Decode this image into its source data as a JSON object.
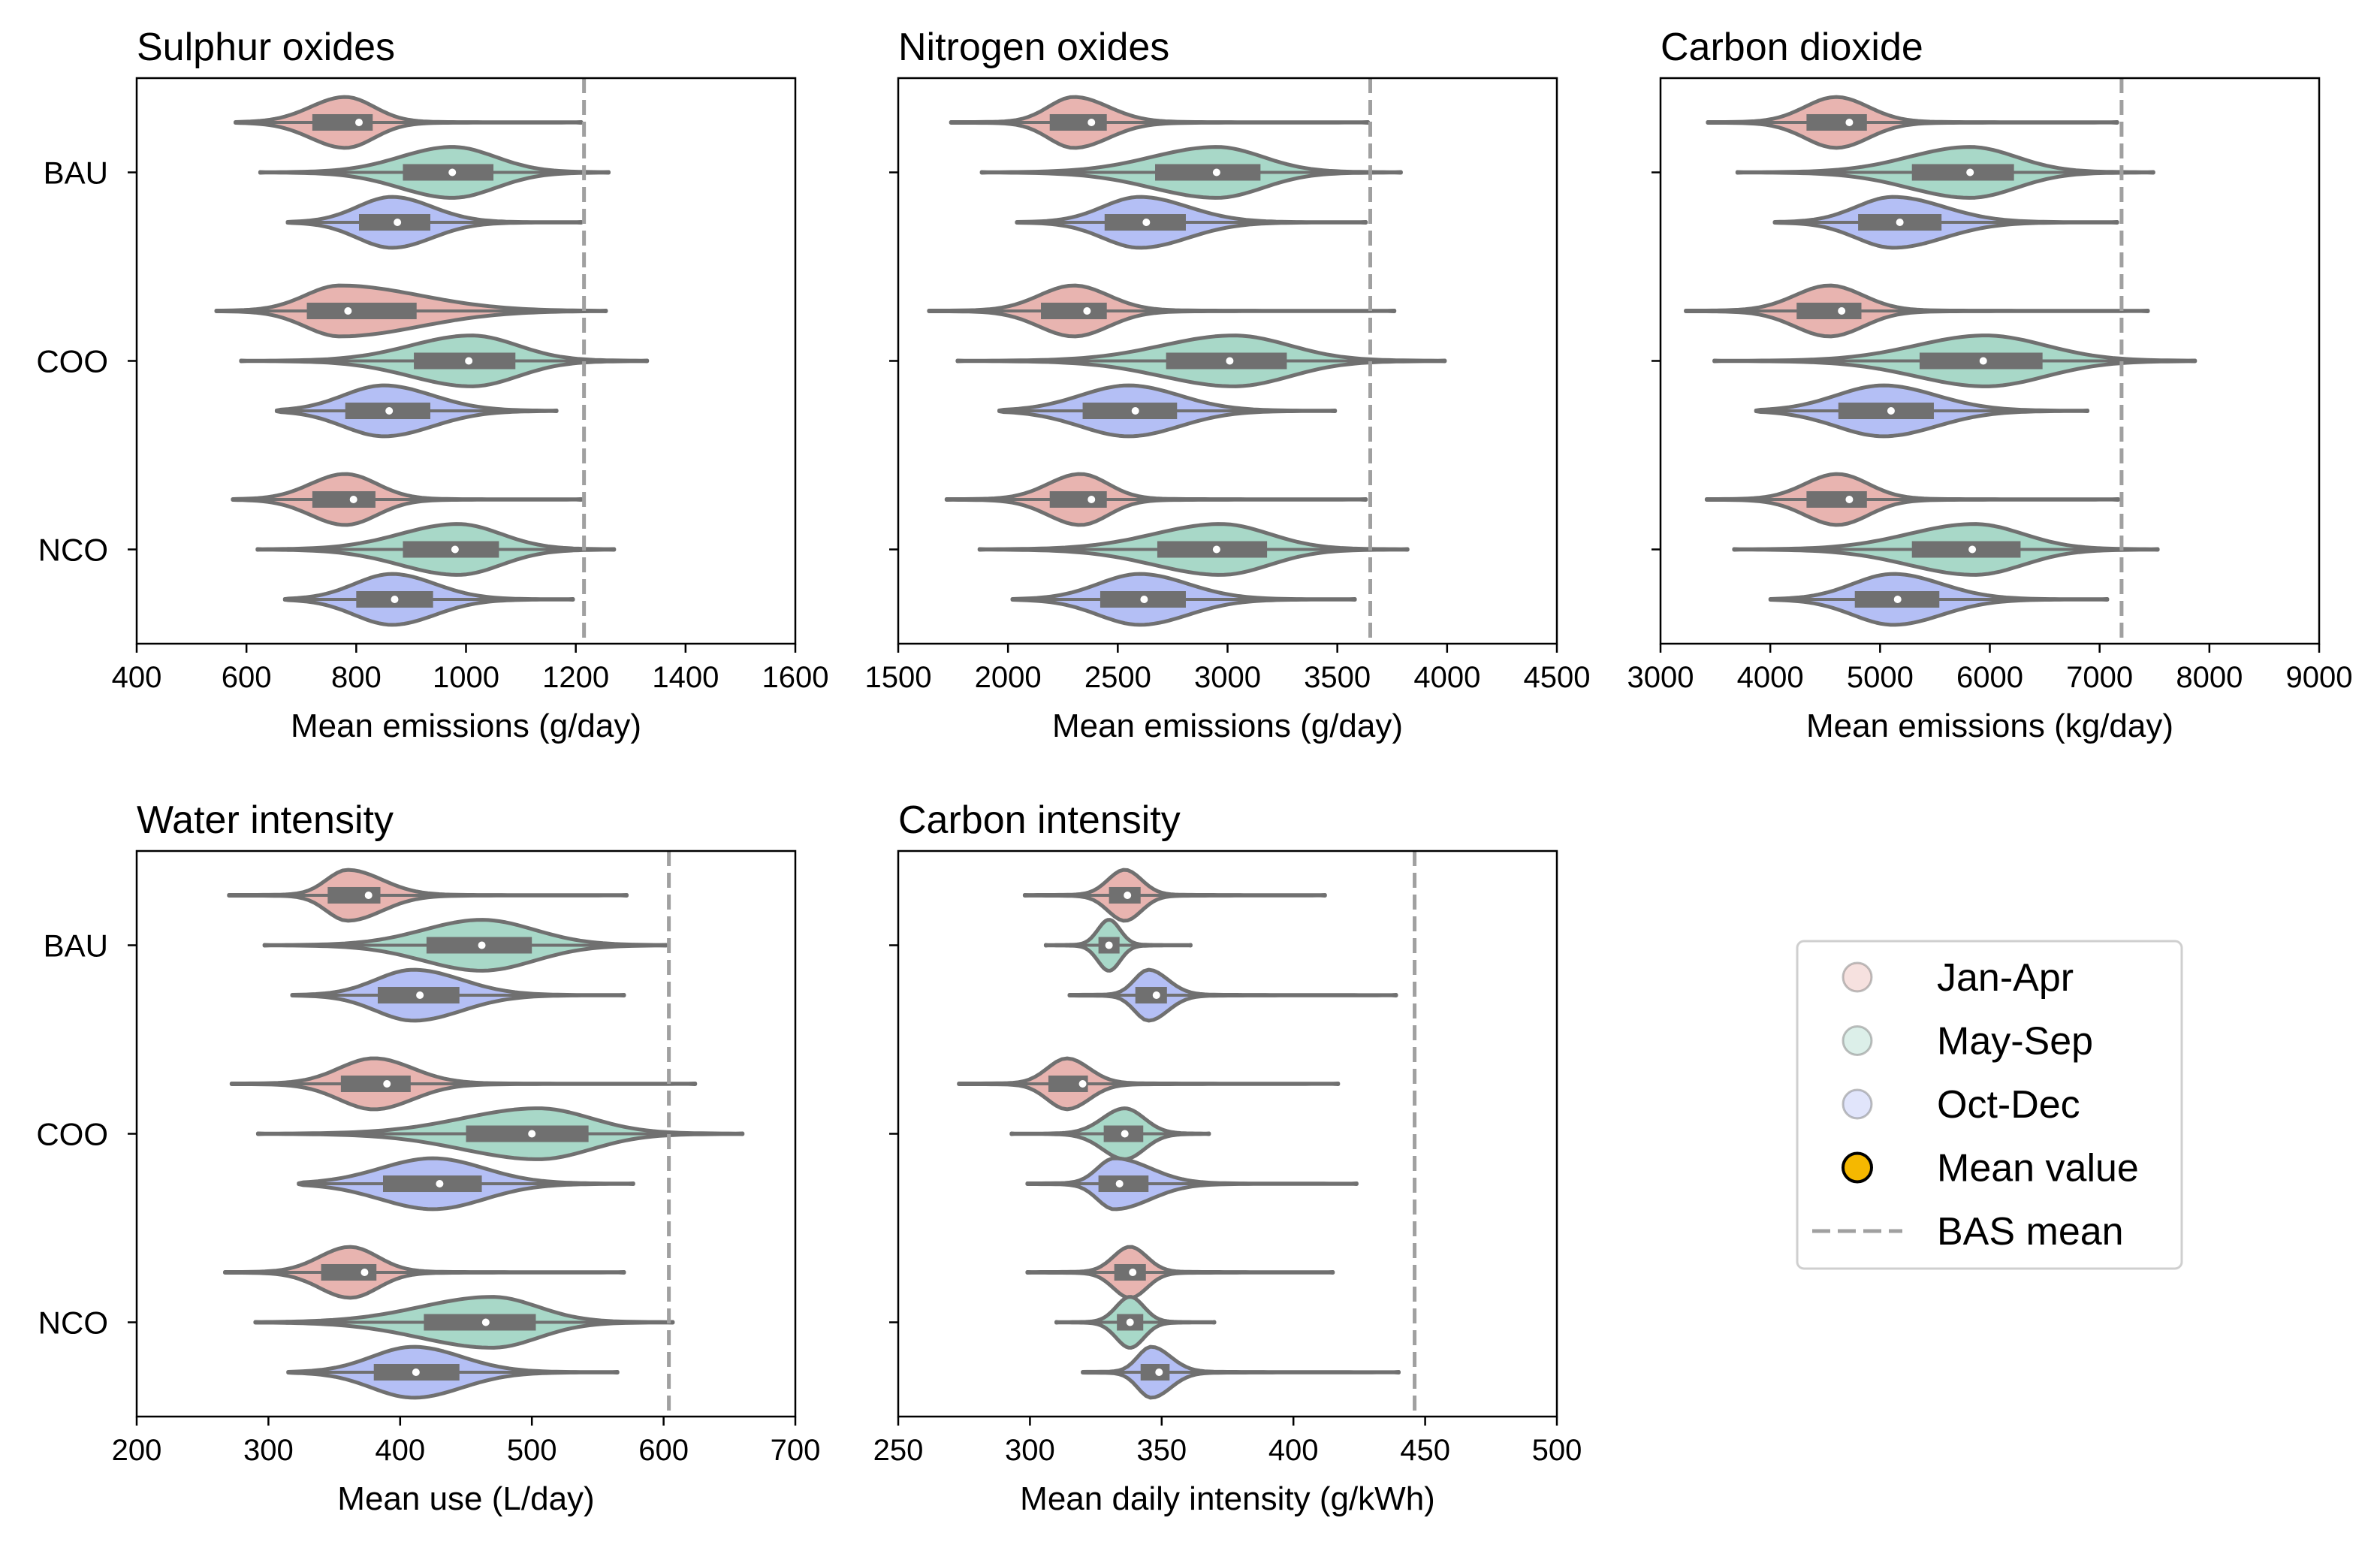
{
  "colors": {
    "Jan-Apr": "#e8b4b0",
    "May-Sep": "#a8d8c8",
    "Oct-Dec": "#b4bff5",
    "violin_edge": "#707070",
    "box": "#707070",
    "mean_marker": "#ffffff",
    "legend_mean_marker": "#f5b800",
    "bas_line": "#a0a0a0"
  },
  "legend": {
    "entries": [
      "Jan-Apr",
      "May-Sep",
      "Oct-Dec",
      "Mean value",
      "BAS mean"
    ],
    "placement": "lower-right (empty sixth panel)"
  },
  "chart_data": [
    {
      "type": "violin",
      "title": "Sulphur oxides",
      "xlabel": "Mean emissions (g/day)",
      "xlim": [
        400,
        1600
      ],
      "xticks": [
        400,
        600,
        800,
        1000,
        1200,
        1400,
        1600
      ],
      "categories": [
        "BAU",
        "COO",
        "NCO"
      ],
      "show_yticklabels": true,
      "bas_mean": 1215,
      "groups": [
        {
          "category": "BAU",
          "series": "Jan-Apr",
          "min": 580,
          "q1": 720,
          "median": 780,
          "q3": 830,
          "max": 1210,
          "mean": 805,
          "mode": 780
        },
        {
          "category": "BAU",
          "series": "May-Sep",
          "min": 625,
          "q1": 885,
          "median": 960,
          "q3": 1050,
          "max": 1260,
          "mean": 975,
          "mode": 975
        },
        {
          "category": "BAU",
          "series": "Oct-Dec",
          "min": 675,
          "q1": 805,
          "median": 860,
          "q3": 935,
          "max": 1210,
          "mean": 875,
          "mode": 865
        },
        {
          "category": "COO",
          "series": "Jan-Apr",
          "min": 545,
          "q1": 710,
          "median": 770,
          "q3": 910,
          "max": 1255,
          "mean": 785,
          "mode": 770
        },
        {
          "category": "COO",
          "series": "May-Sep",
          "min": 590,
          "q1": 905,
          "median": 1000,
          "q3": 1090,
          "max": 1330,
          "mean": 1005,
          "mode": 1010
        },
        {
          "category": "COO",
          "series": "Oct-Dec",
          "min": 655,
          "q1": 780,
          "median": 845,
          "q3": 935,
          "max": 1165,
          "mean": 860,
          "mode": 850
        },
        {
          "category": "NCO",
          "series": "Jan-Apr",
          "min": 575,
          "q1": 720,
          "median": 780,
          "q3": 835,
          "max": 1210,
          "mean": 795,
          "mode": 780
        },
        {
          "category": "NCO",
          "series": "May-Sep",
          "min": 620,
          "q1": 885,
          "median": 970,
          "q3": 1060,
          "max": 1270,
          "mean": 980,
          "mode": 985
        },
        {
          "category": "NCO",
          "series": "Oct-Dec",
          "min": 670,
          "q1": 800,
          "median": 855,
          "q3": 940,
          "max": 1195,
          "mean": 870,
          "mode": 865
        }
      ]
    },
    {
      "type": "violin",
      "title": "Nitrogen oxides",
      "xlabel": "Mean emissions (g/day)",
      "xlim": [
        1500,
        4500
      ],
      "xticks": [
        1500,
        2000,
        2500,
        3000,
        3500,
        4000,
        4500
      ],
      "categories": [
        "BAU",
        "COO",
        "NCO"
      ],
      "show_yticklabels": false,
      "bas_mean": 3650,
      "groups": [
        {
          "category": "BAU",
          "series": "Jan-Apr",
          "min": 1740,
          "q1": 2190,
          "median": 2300,
          "q3": 2450,
          "max": 3640,
          "mean": 2380,
          "mode": 2300
        },
        {
          "category": "BAU",
          "series": "May-Sep",
          "min": 1880,
          "q1": 2670,
          "median": 2900,
          "q3": 3150,
          "max": 3790,
          "mean": 2950,
          "mode": 2950
        },
        {
          "category": "BAU",
          "series": "Oct-Dec",
          "min": 2040,
          "q1": 2440,
          "median": 2580,
          "q3": 2810,
          "max": 3630,
          "mean": 2630,
          "mode": 2600
        },
        {
          "category": "COO",
          "series": "Jan-Apr",
          "min": 1640,
          "q1": 2150,
          "median": 2300,
          "q3": 2450,
          "max": 3760,
          "mean": 2360,
          "mode": 2300
        },
        {
          "category": "COO",
          "series": "May-Sep",
          "min": 1770,
          "q1": 2720,
          "median": 3000,
          "q3": 3270,
          "max": 3990,
          "mean": 3010,
          "mode": 3030
        },
        {
          "category": "COO",
          "series": "Oct-Dec",
          "min": 1960,
          "q1": 2340,
          "median": 2530,
          "q3": 2770,
          "max": 3490,
          "mean": 2580,
          "mode": 2550
        },
        {
          "category": "NCO",
          "series": "Jan-Apr",
          "min": 1720,
          "q1": 2190,
          "median": 2330,
          "q3": 2450,
          "max": 3630,
          "mean": 2380,
          "mode": 2330
        },
        {
          "category": "NCO",
          "series": "May-Sep",
          "min": 1870,
          "q1": 2680,
          "median": 2940,
          "q3": 3180,
          "max": 3820,
          "mean": 2950,
          "mode": 2970
        },
        {
          "category": "NCO",
          "series": "Oct-Dec",
          "min": 2020,
          "q1": 2420,
          "median": 2580,
          "q3": 2810,
          "max": 3580,
          "mean": 2620,
          "mode": 2600
        }
      ]
    },
    {
      "type": "violin",
      "title": "Carbon dioxide",
      "xlabel": "Mean emissions (kg/day)",
      "xlim": [
        3000,
        9000
      ],
      "xticks": [
        3000,
        4000,
        5000,
        6000,
        7000,
        8000,
        9000
      ],
      "categories": [
        "BAU",
        "COO",
        "NCO"
      ],
      "show_yticklabels": false,
      "bas_mean": 7200,
      "groups": [
        {
          "category": "BAU",
          "series": "Jan-Apr",
          "min": 3430,
          "q1": 4330,
          "median": 4600,
          "q3": 4880,
          "max": 7160,
          "mean": 4720,
          "mode": 4600
        },
        {
          "category": "BAU",
          "series": "May-Sep",
          "min": 3700,
          "q1": 5290,
          "median": 5750,
          "q3": 6220,
          "max": 7490,
          "mean": 5820,
          "mode": 5820
        },
        {
          "category": "BAU",
          "series": "Oct-Dec",
          "min": 4040,
          "q1": 4800,
          "median": 5090,
          "q3": 5560,
          "max": 7160,
          "mean": 5180,
          "mode": 5120
        },
        {
          "category": "COO",
          "series": "Jan-Apr",
          "min": 3230,
          "q1": 4240,
          "median": 4540,
          "q3": 4830,
          "max": 7440,
          "mean": 4650,
          "mode": 4540
        },
        {
          "category": "COO",
          "series": "May-Sep",
          "min": 3490,
          "q1": 5360,
          "median": 5910,
          "q3": 6480,
          "max": 7870,
          "mean": 5940,
          "mode": 5960
        },
        {
          "category": "COO",
          "series": "Oct-Dec",
          "min": 3870,
          "q1": 4620,
          "median": 4990,
          "q3": 5490,
          "max": 6890,
          "mean": 5100,
          "mode": 5030
        },
        {
          "category": "NCO",
          "series": "Jan-Apr",
          "min": 3420,
          "q1": 4330,
          "median": 4610,
          "q3": 4880,
          "max": 7170,
          "mean": 4720,
          "mode": 4610
        },
        {
          "category": "NCO",
          "series": "May-Sep",
          "min": 3670,
          "q1": 5290,
          "median": 5790,
          "q3": 6280,
          "max": 7530,
          "mean": 5840,
          "mode": 5860
        },
        {
          "category": "NCO",
          "series": "Oct-Dec",
          "min": 4000,
          "q1": 4770,
          "median": 5100,
          "q3": 5540,
          "max": 7070,
          "mean": 5160,
          "mode": 5120
        }
      ]
    },
    {
      "type": "violin",
      "title": "Water intensity",
      "xlabel": "Mean use (L/day)",
      "xlim": [
        200,
        700
      ],
      "xticks": [
        200,
        300,
        400,
        500,
        600,
        700
      ],
      "categories": [
        "BAU",
        "COO",
        "NCO"
      ],
      "show_yticklabels": true,
      "bas_mean": 604,
      "groups": [
        {
          "category": "BAU",
          "series": "Jan-Apr",
          "min": 270,
          "q1": 345,
          "median": 360,
          "q3": 385,
          "max": 572,
          "mean": 376,
          "mode": 360
        },
        {
          "category": "BAU",
          "series": "May-Sep",
          "min": 297,
          "q1": 420,
          "median": 455,
          "q3": 500,
          "max": 602,
          "mean": 462,
          "mode": 462
        },
        {
          "category": "BAU",
          "series": "Oct-Dec",
          "min": 318,
          "q1": 383,
          "median": 405,
          "q3": 445,
          "max": 570,
          "mean": 415,
          "mode": 410
        },
        {
          "category": "COO",
          "series": "Jan-Apr",
          "min": 272,
          "q1": 355,
          "median": 380,
          "q3": 408,
          "max": 624,
          "mean": 390,
          "mode": 380
        },
        {
          "category": "COO",
          "series": "May-Sep",
          "min": 292,
          "q1": 450,
          "median": 495,
          "q3": 543,
          "max": 660,
          "mean": 500,
          "mode": 505
        },
        {
          "category": "COO",
          "series": "Oct-Dec",
          "min": 323,
          "q1": 387,
          "median": 420,
          "q3": 462,
          "max": 577,
          "mean": 430,
          "mode": 425
        },
        {
          "category": "NCO",
          "series": "Jan-Apr",
          "min": 267,
          "q1": 340,
          "median": 362,
          "q3": 382,
          "max": 570,
          "mean": 373,
          "mode": 362
        },
        {
          "category": "NCO",
          "series": "May-Sep",
          "min": 290,
          "q1": 418,
          "median": 460,
          "q3": 503,
          "max": 607,
          "mean": 465,
          "mode": 470
        },
        {
          "category": "NCO",
          "series": "Oct-Dec",
          "min": 315,
          "q1": 380,
          "median": 405,
          "q3": 445,
          "max": 565,
          "mean": 412,
          "mode": 410
        }
      ]
    },
    {
      "type": "violin",
      "title": "Carbon intensity",
      "xlabel": "Mean daily intensity (g/kWh)",
      "xlim": [
        250,
        500
      ],
      "xticks": [
        250,
        300,
        350,
        400,
        450,
        500
      ],
      "categories": [
        "BAU",
        "COO",
        "NCO"
      ],
      "show_yticklabels": false,
      "bas_mean": 446,
      "groups": [
        {
          "category": "BAU",
          "series": "Jan-Apr",
          "min": 298,
          "q1": 330,
          "median": 336,
          "q3": 342,
          "max": 412,
          "mean": 337,
          "mode": 336
        },
        {
          "category": "BAU",
          "series": "May-Sep",
          "min": 306,
          "q1": 326,
          "median": 330,
          "q3": 334,
          "max": 361,
          "mean": 330,
          "mode": 330
        },
        {
          "category": "BAU",
          "series": "Oct-Dec",
          "min": 315,
          "q1": 340,
          "median": 346,
          "q3": 352,
          "max": 439,
          "mean": 348,
          "mode": 345
        },
        {
          "category": "COO",
          "series": "Jan-Apr",
          "min": 273,
          "q1": 307,
          "median": 314,
          "q3": 322,
          "max": 417,
          "mean": 320,
          "mode": 314
        },
        {
          "category": "COO",
          "series": "May-Sep",
          "min": 293,
          "q1": 328,
          "median": 335,
          "q3": 343,
          "max": 368,
          "mean": 336,
          "mode": 336
        },
        {
          "category": "COO",
          "series": "Oct-Dec",
          "min": 299,
          "q1": 326,
          "median": 332,
          "q3": 345,
          "max": 424,
          "mean": 334,
          "mode": 332
        },
        {
          "category": "NCO",
          "series": "Jan-Apr",
          "min": 299,
          "q1": 332,
          "median": 338,
          "q3": 344,
          "max": 415,
          "mean": 339,
          "mode": 338
        },
        {
          "category": "NCO",
          "series": "May-Sep",
          "min": 310,
          "q1": 333,
          "median": 338,
          "q3": 343,
          "max": 370,
          "mean": 338,
          "mode": 338
        },
        {
          "category": "NCO",
          "series": "Oct-Dec",
          "min": 320,
          "q1": 342,
          "median": 347,
          "q3": 353,
          "max": 440,
          "mean": 349,
          "mode": 346
        }
      ]
    }
  ]
}
